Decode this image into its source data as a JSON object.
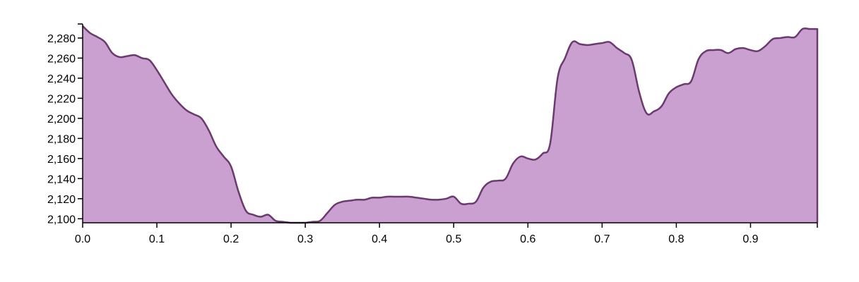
{
  "chart_data": {
    "type": "area",
    "title": "",
    "xlabel": "",
    "ylabel": "",
    "xlim": [
      0,
      0.99
    ],
    "ylim": [
      2096,
      2294
    ],
    "x_ticks": [
      0.0,
      0.1,
      0.2,
      0.3,
      0.4,
      0.5,
      0.6,
      0.7,
      0.8,
      0.9
    ],
    "x_tick_labels": [
      "0.0",
      "0.1",
      "0.2",
      "0.3",
      "0.4",
      "0.5",
      "0.6",
      "0.7",
      "0.8",
      "0.9"
    ],
    "y_ticks": [
      2100,
      2120,
      2140,
      2160,
      2180,
      2200,
      2220,
      2240,
      2260,
      2280
    ],
    "y_tick_labels": [
      "2,100",
      "2,120",
      "2,140",
      "2,160",
      "2,180",
      "2,200",
      "2,220",
      "2,240",
      "2,260",
      "2,280"
    ],
    "grid": false,
    "colors": {
      "fill": "#c9a0d0",
      "stroke": "#6b3a6e"
    },
    "series": [
      {
        "x": [
          0.0,
          0.01,
          0.02,
          0.03,
          0.04,
          0.05,
          0.06,
          0.07,
          0.08,
          0.09,
          0.1,
          0.11,
          0.12,
          0.13,
          0.14,
          0.15,
          0.16,
          0.17,
          0.18,
          0.19,
          0.2,
          0.21,
          0.22,
          0.23,
          0.24,
          0.25,
          0.26,
          0.27,
          0.28,
          0.29,
          0.3,
          0.31,
          0.32,
          0.33,
          0.34,
          0.35,
          0.36,
          0.37,
          0.38,
          0.39,
          0.4,
          0.41,
          0.42,
          0.43,
          0.44,
          0.45,
          0.46,
          0.47,
          0.48,
          0.49,
          0.5,
          0.51,
          0.52,
          0.53,
          0.54,
          0.55,
          0.56,
          0.57,
          0.58,
          0.59,
          0.6,
          0.61,
          0.62,
          0.63,
          0.64,
          0.65,
          0.66,
          0.67,
          0.68,
          0.69,
          0.7,
          0.71,
          0.72,
          0.73,
          0.74,
          0.75,
          0.76,
          0.77,
          0.78,
          0.79,
          0.8,
          0.81,
          0.82,
          0.83,
          0.84,
          0.85,
          0.86,
          0.87,
          0.88,
          0.89,
          0.9,
          0.91,
          0.92,
          0.93,
          0.94,
          0.95,
          0.96,
          0.97,
          0.98,
          0.99
        ],
        "values": [
          2292,
          2285,
          2281,
          2276,
          2265,
          2261,
          2262,
          2263,
          2260,
          2258,
          2248,
          2236,
          2224,
          2215,
          2208,
          2204,
          2200,
          2188,
          2172,
          2162,
          2152,
          2127,
          2108,
          2104,
          2102,
          2104,
          2098,
          2097,
          2096,
          2096,
          2096,
          2097,
          2098,
          2106,
          2114,
          2117,
          2118,
          2119,
          2119,
          2121,
          2121,
          2122,
          2122,
          2122,
          2122,
          2121,
          2120,
          2119,
          2119,
          2120,
          2122,
          2115,
          2115,
          2117,
          2131,
          2137,
          2138,
          2140,
          2155,
          2162,
          2160,
          2159,
          2165,
          2175,
          2240,
          2260,
          2276,
          2274,
          2273,
          2274,
          2275,
          2276,
          2270,
          2265,
          2258,
          2226,
          2205,
          2207,
          2212,
          2225,
          2231,
          2234,
          2237,
          2259,
          2267,
          2268,
          2268,
          2265,
          2269,
          2270,
          2268,
          2267,
          2272,
          2279,
          2280,
          2281,
          2281,
          2289,
          2289,
          2289
        ]
      }
    ]
  }
}
